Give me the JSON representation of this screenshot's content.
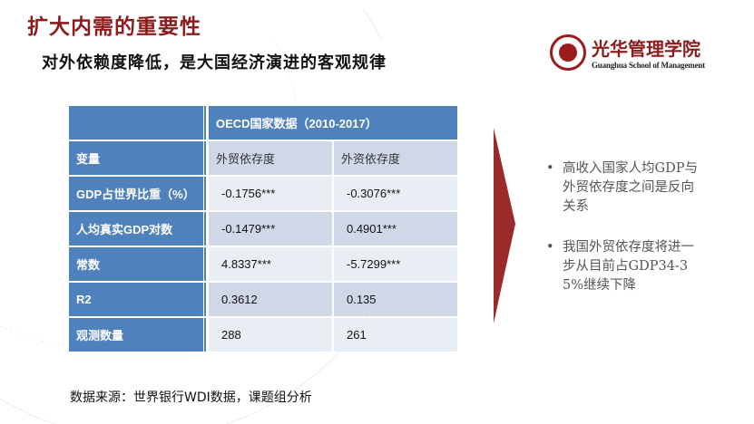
{
  "header": {
    "title": "扩大内需的重要性",
    "subtitle": "对外依赖度降低，是大国经济演进的客观规律"
  },
  "logo": {
    "name_cn": "光华管理学院",
    "name_en": "Guanghua School of Management"
  },
  "table": {
    "group_header": "OECD国家数据（2010-2017）",
    "var_label": "变量",
    "columns": [
      "外贸依存度",
      "外资依存度"
    ],
    "rows": [
      {
        "label": "GDP占世界比重（%）",
        "values": [
          "-0.1756***",
          "-0.3076***"
        ]
      },
      {
        "label": "人均真实GDP对数",
        "values": [
          "-0.1479***",
          "0.4901***"
        ]
      },
      {
        "label": "常数",
        "values": [
          "4.8337***",
          "-5.7299***"
        ]
      },
      {
        "label": "R2",
        "values": [
          "0.3612",
          "0.135"
        ]
      },
      {
        "label": "观测数量",
        "values": [
          "288",
          "261"
        ]
      }
    ]
  },
  "bullets": [
    "高收入国家人均GDP与外贸依存度之间是反向关系",
    "我国外贸依存度将进一步从目前占GDP34-35%继续下降"
  ],
  "source": "数据来源：世界银行WDI数据，课题组分析",
  "colors": {
    "title": "#8c1c1c",
    "table_header": "#4f81bd",
    "arrow": "#9b2a2a"
  }
}
